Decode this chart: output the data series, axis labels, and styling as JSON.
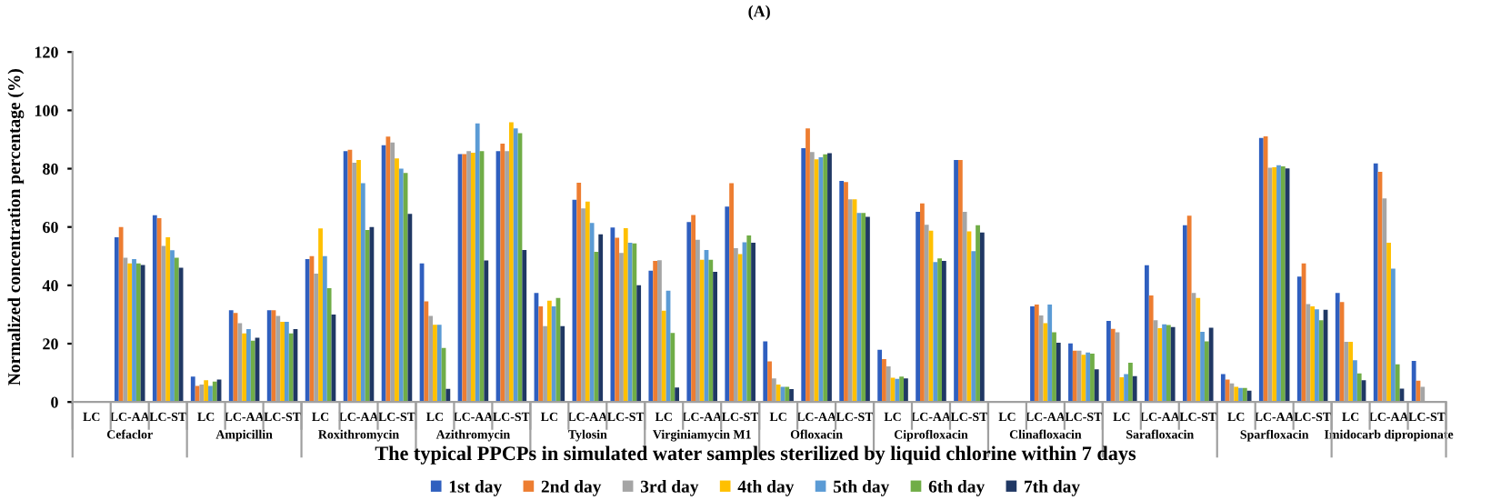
{
  "chart_data": {
    "type": "bar",
    "title": "(A)",
    "xlabel": "The typical PPCPs in simulated water samples sterilized by liquid chlorine within 7 days",
    "ylabel": "Normalized concentration percentage (%)",
    "categories": [
      "LC",
      "LC-AA",
      "LC-ST",
      "LC",
      "LC-AA",
      "LC-ST",
      "LC",
      "LC-AA",
      "LC-ST",
      "LC",
      "LC-AA",
      "LC-ST",
      "LC",
      "LC-AA",
      "LC-ST",
      "LC",
      "LC-AA",
      "LC-ST",
      "LC",
      "LC-AA",
      "LC-ST",
      "LC",
      "LC-AA",
      "LC-ST",
      "LC",
      "LC-AA",
      "LC-ST",
      "LC",
      "LC-AA",
      "LC-ST",
      "LC",
      "LC-AA",
      "LC-ST",
      "LC",
      "LC-AA",
      "LC-ST"
    ],
    "annotations": [
      "Cefaclor",
      "Ampicillin",
      "Roxithromycin",
      "Azithromycin",
      "Tylosin",
      "Virginiamycin M1",
      "Ofloxacin",
      "Ciprofloxacin",
      "Clinafloxacin",
      "Sarafloxacin",
      "Sparfloxacin",
      "Imidocarb dipropionate"
    ],
    "series": [
      {
        "name": "1st day",
        "color": "#2f5fbf",
        "values": [
          null,
          56.5,
          64,
          8.7,
          31.5,
          31.5,
          49,
          86,
          88,
          47.5,
          85,
          86,
          37.4,
          69.3,
          59.8,
          45,
          61.7,
          67,
          20.8,
          87,
          75.8,
          17.9,
          65.2,
          83,
          null,
          32.8,
          20.1,
          27.8,
          46.9,
          60.6,
          9.6,
          90.5,
          43,
          37.4,
          81.8,
          14.1
        ]
      },
      {
        "name": "2nd day",
        "color": "#ed7d31",
        "values": [
          null,
          60,
          63,
          5.5,
          30.5,
          31.5,
          50,
          86.5,
          91,
          34.5,
          85,
          88.6,
          32.8,
          75.2,
          56.3,
          48.4,
          64.1,
          75,
          13.9,
          93.8,
          75.4,
          14.7,
          68.1,
          83,
          null,
          33.4,
          17.6,
          25.1,
          36.5,
          63.9,
          7.7,
          91.1,
          47.5,
          34.3,
          78.9,
          7.3
        ]
      },
      {
        "name": "3rd day",
        "color": "#a5a5a5",
        "values": [
          null,
          49.5,
          53.5,
          6,
          27,
          29.5,
          44,
          82,
          89,
          29.5,
          86,
          86,
          26,
          66.4,
          51.1,
          48.6,
          55.6,
          52.7,
          8.1,
          85.7,
          69.5,
          12.2,
          60.8,
          65.2,
          null,
          29.7,
          17.6,
          23.9,
          28,
          37.4,
          6.4,
          80.3,
          33.6,
          20.6,
          69.8,
          5.2
        ]
      },
      {
        "name": "4th day",
        "color": "#ffc000",
        "values": [
          null,
          47.5,
          56.5,
          7.5,
          23.5,
          27.5,
          59.5,
          83,
          83.5,
          26.5,
          85.5,
          95.9,
          34.7,
          68.7,
          59.6,
          31.3,
          48.8,
          50.7,
          6,
          83.2,
          69.5,
          8.3,
          58.7,
          58.5,
          null,
          27,
          16.2,
          8.5,
          25.3,
          35.7,
          5.2,
          80.5,
          32.8,
          20.6,
          54.6,
          null
        ]
      },
      {
        "name": "5th day",
        "color": "#5b9bd5",
        "values": [
          null,
          49,
          52,
          5.5,
          25,
          27.5,
          50,
          75,
          80,
          26.5,
          95.5,
          93.8,
          32.8,
          61.4,
          54.6,
          38.2,
          52.1,
          54.8,
          5.2,
          83.9,
          64.8,
          7.9,
          48,
          51.7,
          null,
          33.4,
          17,
          9.6,
          26.6,
          24.1,
          4.8,
          81.2,
          31.8,
          14.3,
          45.7,
          null
        ]
      },
      {
        "name": "6th day",
        "color": "#70ad47",
        "values": [
          null,
          47.5,
          49.5,
          7,
          21,
          23.5,
          39,
          59,
          78.5,
          18.5,
          86,
          92.2,
          35.7,
          51.5,
          54.4,
          23.7,
          48.8,
          57.1,
          5.2,
          84.9,
          64.8,
          8.7,
          49.2,
          60.6,
          null,
          23.9,
          16.6,
          13.5,
          26.4,
          20.8,
          4.8,
          80.8,
          28,
          9.8,
          12.9,
          null
        ]
      },
      {
        "name": "7th day",
        "color": "#203864",
        "values": [
          null,
          47,
          46,
          7.7,
          22,
          25,
          30,
          60,
          64.5,
          4.5,
          48.5,
          52.1,
          26,
          57.5,
          40,
          5,
          44.6,
          54.6,
          4.4,
          85.3,
          63.5,
          8.1,
          48.4,
          58.1,
          null,
          20.3,
          11.2,
          8.9,
          25.7,
          25.5,
          3.9,
          80.1,
          31.6,
          7.5,
          4.6,
          null
        ]
      }
    ],
    "ylim": [
      0,
      120
    ],
    "yticks": [
      0,
      20,
      40,
      60,
      80,
      100,
      120
    ],
    "grid": false,
    "legend": "bottom"
  }
}
